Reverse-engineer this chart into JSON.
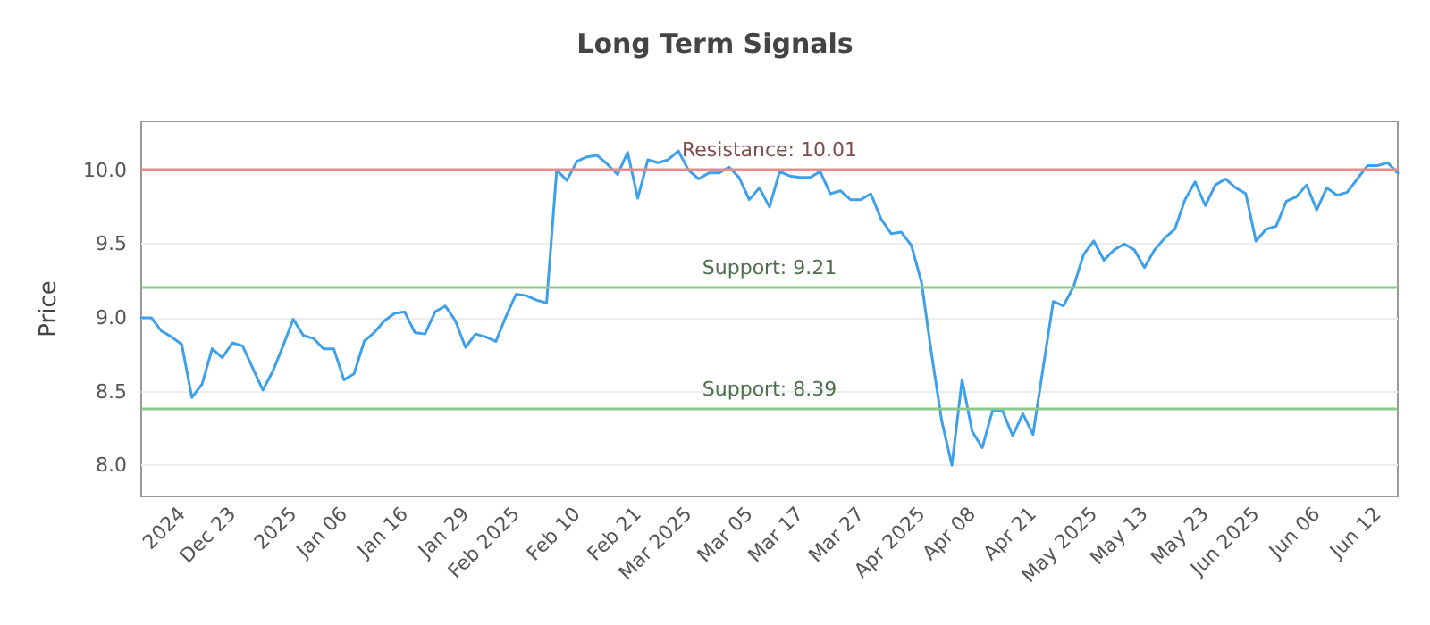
{
  "chart_data": {
    "type": "line",
    "title": "Long Term Signals",
    "ylabel": "Price",
    "categories": [
      null,
      null,
      null,
      null,
      "2024",
      null,
      null,
      null,
      null,
      "Dec 23",
      null,
      null,
      null,
      null,
      null,
      "2025",
      null,
      null,
      null,
      null,
      "Jan 06",
      null,
      null,
      null,
      null,
      null,
      "Jan 16",
      null,
      null,
      null,
      null,
      null,
      "Jan 29",
      null,
      null,
      null,
      null,
      "Feb 2025",
      null,
      null,
      null,
      null,
      null,
      "Feb 10",
      null,
      null,
      null,
      null,
      null,
      "Feb 21",
      null,
      null,
      null,
      null,
      "Mar 2025",
      null,
      null,
      null,
      null,
      null,
      "Mar 05",
      null,
      null,
      null,
      null,
      "Mar 17",
      null,
      null,
      null,
      null,
      null,
      "Mar 27",
      null,
      null,
      null,
      null,
      null,
      "Apr 2025",
      null,
      null,
      null,
      null,
      "Apr 08",
      null,
      null,
      null,
      null,
      null,
      "Apr 21",
      null,
      null,
      null,
      null,
      null,
      "May 2025",
      null,
      null,
      null,
      null,
      "May 13",
      null,
      null,
      null,
      null,
      null,
      "May 23",
      null,
      null,
      null,
      null,
      "Jun 2025",
      null,
      null,
      null,
      null,
      null,
      "Jun 06",
      null,
      null,
      null,
      null,
      null,
      "Jun 12",
      null,
      null
    ],
    "series": [
      {
        "color": "#3ea0e8",
        "values": [
          9.0,
          9.0,
          8.91,
          8.87,
          8.82,
          8.46,
          8.55,
          8.79,
          8.73,
          8.83,
          8.81,
          8.66,
          8.51,
          8.64,
          8.81,
          8.99,
          8.88,
          8.86,
          8.79,
          8.79,
          8.58,
          8.62,
          8.84,
          8.9,
          8.98,
          9.03,
          9.04,
          8.9,
          8.89,
          9.04,
          9.08,
          8.98,
          8.8,
          8.89,
          8.87,
          8.84,
          9.01,
          9.16,
          9.15,
          9.12,
          9.1,
          10.0,
          9.93,
          10.06,
          10.09,
          10.1,
          10.04,
          9.97,
          10.12,
          9.81,
          10.07,
          10.05,
          10.07,
          10.13,
          10.0,
          9.94,
          9.98,
          9.98,
          10.02,
          9.95,
          9.8,
          9.88,
          9.75,
          9.99,
          9.96,
          9.95,
          9.95,
          9.99,
          9.84,
          9.86,
          9.8,
          9.8,
          9.84,
          9.67,
          9.57,
          9.58,
          9.49,
          9.24,
          8.75,
          8.3,
          8.0,
          8.58,
          8.23,
          8.12,
          8.37,
          8.37,
          8.2,
          8.35,
          8.21,
          8.66,
          9.11,
          9.08,
          9.21,
          9.43,
          9.52,
          9.39,
          9.46,
          9.5,
          9.46,
          9.34,
          9.46,
          9.54,
          9.6,
          9.8,
          9.92,
          9.76,
          9.9,
          9.94,
          9.88,
          9.84,
          9.52,
          9.6,
          9.62,
          9.79,
          9.82,
          9.9,
          9.73,
          9.88,
          9.83,
          9.85,
          9.94,
          10.03,
          10.03,
          10.05,
          9.98
        ]
      }
    ],
    "ylim": [
      7.79,
      10.33
    ],
    "yticks": [
      {
        "value": 8,
        "label": "8.0"
      },
      {
        "value": 8.5,
        "label": "8.5"
      },
      {
        "value": 9,
        "label": "9.0"
      },
      {
        "value": 9.5,
        "label": "9.5"
      },
      {
        "value": 10,
        "label": "10.0"
      }
    ],
    "grid": "y",
    "marker": "none",
    "line_style": "solid",
    "ref_lines": [
      {
        "axis": "y",
        "value": 10.01,
        "label": "Resistance: 10.01",
        "color": "#e88a8a"
      },
      {
        "axis": "y",
        "value": 9.21,
        "label": "Support: 9.21",
        "color": "#8cc88c"
      },
      {
        "axis": "y",
        "value": 8.39,
        "label": "Support: 8.39",
        "color": "#8cc88c"
      }
    ]
  }
}
